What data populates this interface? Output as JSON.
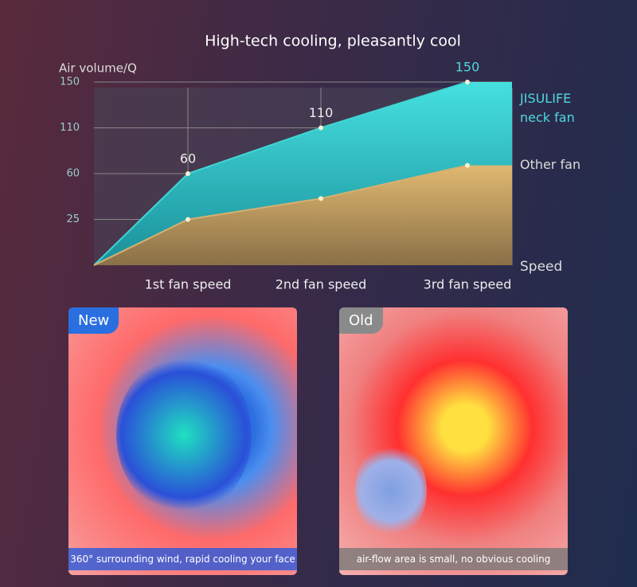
{
  "chart_data": {
    "type": "area",
    "title": "High-tech cooling, pleasantly cool",
    "y_label": "Air volume/Q",
    "x_label": "Speed",
    "categories": [
      null,
      "1st fan speed",
      "2nd fan speed",
      "3rd fan speed"
    ],
    "series": [
      {
        "name": "JISULIFE neck fan",
        "color": "#3fd6d6",
        "values": [
          0,
          60,
          110,
          150
        ]
      },
      {
        "name": "Other fan",
        "color": "#d6b070",
        "values": [
          0,
          25,
          41,
          69
        ]
      }
    ],
    "ylim": [
      0,
      150
    ],
    "yticks": [
      25,
      60,
      110,
      150
    ],
    "grid": true
  },
  "panels": [
    {
      "badge": "New",
      "caption": "360° surrounding wind, rapid cooling your face"
    },
    {
      "badge": "Old",
      "caption": "air-flow area is small, no obvious cooling"
    }
  ]
}
